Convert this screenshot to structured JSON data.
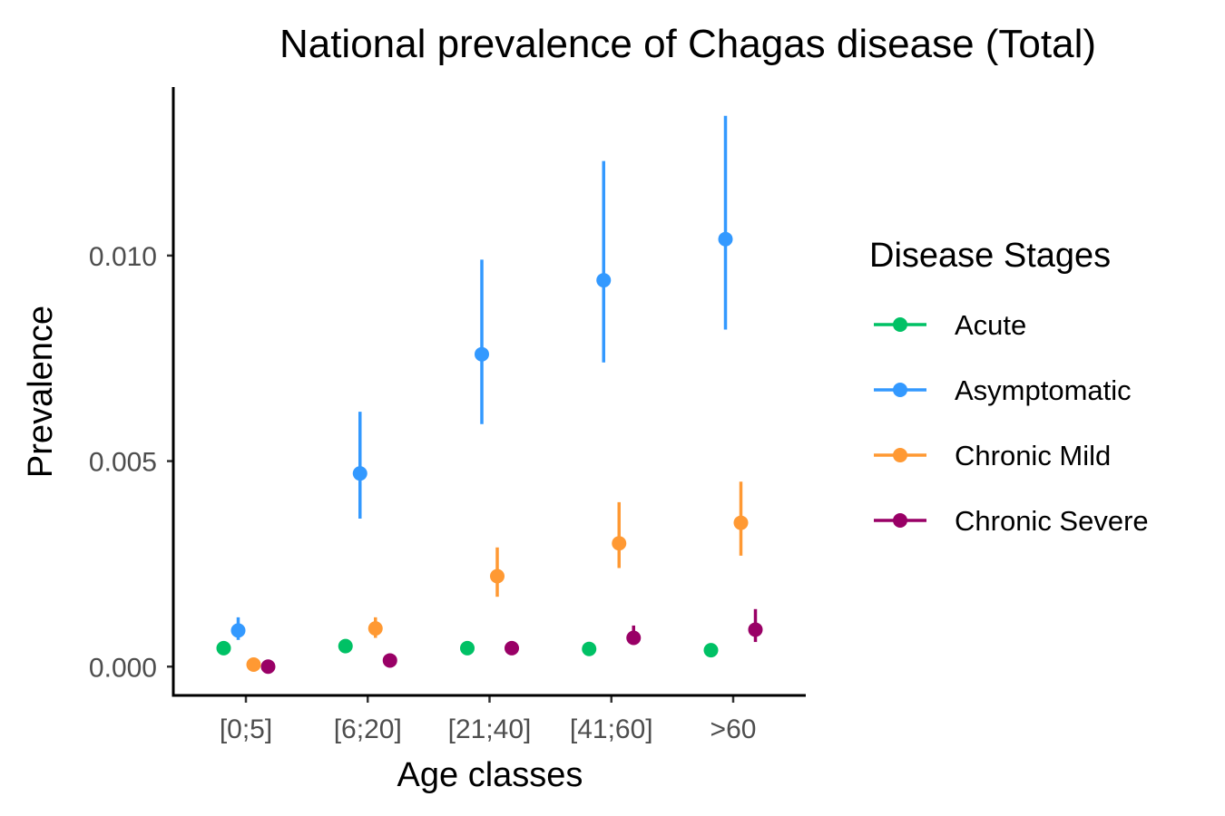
{
  "chart_data": {
    "type": "scatter",
    "title": "National prevalence of Chagas disease (Total)",
    "xlabel": "Age classes",
    "ylabel": "Prevalence",
    "categories": [
      "[0;5]",
      "[6;20]",
      "[21;40]",
      "[41;60]",
      ">60"
    ],
    "ylim": [
      -0.0007,
      0.0141
    ],
    "yticks": [
      {
        "value": 0.0,
        "label": "0.000"
      },
      {
        "value": 0.005,
        "label": "0.005"
      },
      {
        "value": 0.01,
        "label": "0.010"
      }
    ],
    "grid": false,
    "legend": {
      "title": "Disease Stages",
      "position": "right"
    },
    "series": [
      {
        "name": "Acute",
        "color": "#00c165",
        "points": [
          {
            "y": 0.00045,
            "low": 0.00045,
            "high": 0.00045
          },
          {
            "y": 0.0005,
            "low": 0.0005,
            "high": 0.0005
          },
          {
            "y": 0.00045,
            "low": 0.00045,
            "high": 0.00045
          },
          {
            "y": 0.00043,
            "low": 0.00043,
            "high": 0.00043
          },
          {
            "y": 0.0004,
            "low": 0.0004,
            "high": 0.0004
          }
        ]
      },
      {
        "name": "Asymptomatic",
        "color": "#3399ff",
        "points": [
          {
            "y": 0.00088,
            "low": 0.00065,
            "high": 0.0012
          },
          {
            "y": 0.0047,
            "low": 0.0036,
            "high": 0.0062
          },
          {
            "y": 0.0076,
            "low": 0.0059,
            "high": 0.0099
          },
          {
            "y": 0.0094,
            "low": 0.0074,
            "high": 0.0123
          },
          {
            "y": 0.0104,
            "low": 0.0082,
            "high": 0.0134
          }
        ]
      },
      {
        "name": "Chronic Mild",
        "color": "#ff9933",
        "points": [
          {
            "y": 5e-05,
            "low": 5e-05,
            "high": 5e-05
          },
          {
            "y": 0.00093,
            "low": 0.0007,
            "high": 0.0012
          },
          {
            "y": 0.0022,
            "low": 0.0017,
            "high": 0.0029
          },
          {
            "y": 0.003,
            "low": 0.0024,
            "high": 0.004
          },
          {
            "y": 0.0035,
            "low": 0.0027,
            "high": 0.0045
          }
        ]
      },
      {
        "name": "Chronic Severe",
        "color": "#990066",
        "points": [
          {
            "y": 0.0,
            "low": 0.0,
            "high": 0.0
          },
          {
            "y": 0.00015,
            "low": 0.00015,
            "high": 0.00015
          },
          {
            "y": 0.00045,
            "low": 0.00035,
            "high": 0.00055
          },
          {
            "y": 0.0007,
            "low": 0.00055,
            "high": 0.001
          },
          {
            "y": 0.0009,
            "low": 0.0006,
            "high": 0.0014
          }
        ]
      }
    ]
  }
}
